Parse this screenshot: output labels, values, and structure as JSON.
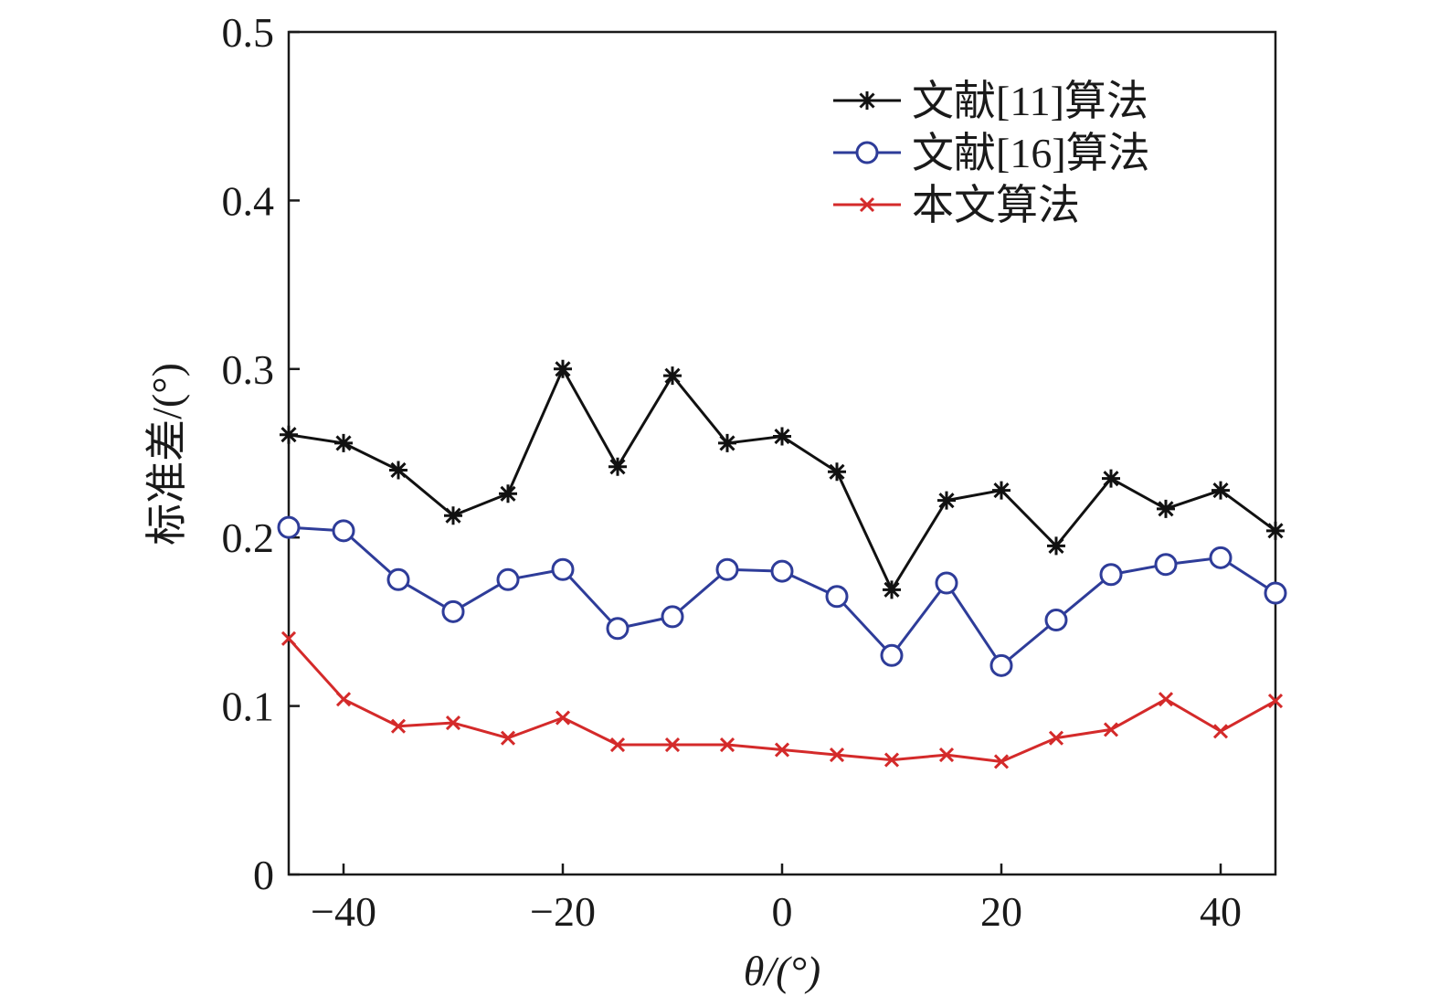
{
  "chart_data": {
    "type": "line",
    "xlabel": "θ/(°)",
    "ylabel": "标准差/(°)",
    "xlim": [
      -45,
      45
    ],
    "ylim": [
      0,
      0.5
    ],
    "x_ticks": [
      -40,
      -20,
      0,
      20,
      40
    ],
    "x_tick_labels": [
      "−40",
      "−20",
      "0",
      "20",
      "40"
    ],
    "y_ticks": [
      0,
      0.1,
      0.2,
      0.3,
      0.4,
      0.5
    ],
    "y_tick_labels": [
      "0",
      "0.1",
      "0.2",
      "0.3",
      "0.4",
      "0.5"
    ],
    "grid": false,
    "legend_position": "top-right",
    "x": [
      -45,
      -40,
      -35,
      -30,
      -25,
      -20,
      -15,
      -10,
      -5,
      0,
      5,
      10,
      15,
      20,
      25,
      30,
      35,
      40,
      45
    ],
    "series": [
      {
        "name": "文献[11]算法",
        "color": "#111111",
        "marker": "asterisk",
        "values": [
          0.261,
          0.256,
          0.24,
          0.213,
          0.226,
          0.3,
          0.242,
          0.296,
          0.256,
          0.26,
          0.239,
          0.169,
          0.222,
          0.228,
          0.195,
          0.235,
          0.217,
          0.228,
          0.204
        ]
      },
      {
        "name": "文献[16]算法",
        "color": "#2e3c99",
        "marker": "circle",
        "values": [
          0.206,
          0.204,
          0.175,
          0.156,
          0.175,
          0.181,
          0.146,
          0.153,
          0.181,
          0.18,
          0.165,
          0.13,
          0.173,
          0.124,
          0.151,
          0.178,
          0.184,
          0.188,
          0.167
        ]
      },
      {
        "name": "本文算法",
        "color": "#d42a2a",
        "marker": "x",
        "values": [
          0.14,
          0.104,
          0.088,
          0.09,
          0.081,
          0.093,
          0.077,
          0.077,
          0.077,
          0.074,
          0.071,
          0.068,
          0.071,
          0.067,
          0.081,
          0.086,
          0.104,
          0.085,
          0.103
        ]
      }
    ]
  }
}
